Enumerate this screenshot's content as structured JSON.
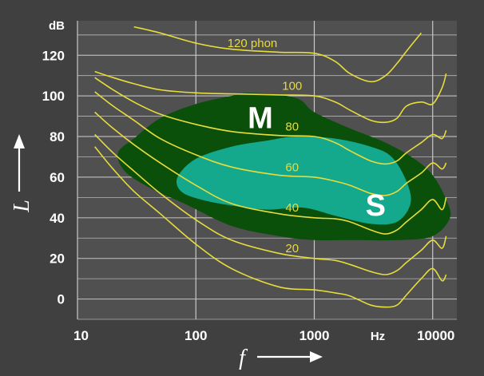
{
  "chart_data": {
    "type": "line",
    "title": "",
    "xlabel": "f",
    "ylabel": "L",
    "x_scale": "log",
    "xlim": [
      10,
      16000
    ],
    "ylim": [
      -10,
      137
    ],
    "grid": true,
    "x_ticks": [
      10,
      100,
      1000,
      10000
    ],
    "x_tick_labels": [
      "10",
      "100",
      "1000",
      "10000"
    ],
    "x_unit": "Hz",
    "y_ticks": [
      0,
      20,
      40,
      60,
      80,
      100,
      120
    ],
    "y_tick_labels": [
      "0",
      "20",
      "40",
      "60",
      "80",
      "100",
      "120"
    ],
    "y_unit": "dB",
    "colors": {
      "background": "#404040",
      "plot_background": "#505050",
      "grid": "#c8c8c8",
      "curves": "#e6dc3c",
      "music_region": "#0a4f0a",
      "speech_region": "#14a88c"
    },
    "series": [
      {
        "name": "120 phon",
        "label": "120 phon",
        "points": [
          [
            30,
            134
          ],
          [
            50,
            131
          ],
          [
            100,
            126
          ],
          [
            200,
            123
          ],
          [
            500,
            121.5
          ],
          [
            1000,
            121
          ],
          [
            1500,
            117
          ],
          [
            2000,
            111
          ],
          [
            3000,
            107
          ],
          [
            4000,
            110
          ],
          [
            5000,
            116
          ],
          [
            6000,
            122
          ],
          [
            8000,
            131
          ]
        ]
      },
      {
        "name": "100 phon",
        "label": "100",
        "points": [
          [
            14,
            112
          ],
          [
            20,
            109
          ],
          [
            30,
            106
          ],
          [
            50,
            103
          ],
          [
            100,
            101.5
          ],
          [
            200,
            101
          ],
          [
            500,
            100.5
          ],
          [
            1000,
            100
          ],
          [
            1500,
            97
          ],
          [
            2000,
            93
          ],
          [
            3000,
            88
          ],
          [
            4000,
            87
          ],
          [
            5000,
            89
          ],
          [
            6000,
            95
          ],
          [
            8000,
            97
          ],
          [
            10000,
            96
          ],
          [
            12000,
            104
          ],
          [
            13000,
            111
          ]
        ]
      },
      {
        "name": "80 phon",
        "label": "80",
        "points": [
          [
            14,
            109
          ],
          [
            20,
            103
          ],
          [
            30,
            97
          ],
          [
            50,
            91
          ],
          [
            100,
            86
          ],
          [
            200,
            82.5
          ],
          [
            500,
            80.5
          ],
          [
            1000,
            80
          ],
          [
            1500,
            77
          ],
          [
            2000,
            73
          ],
          [
            3000,
            68
          ],
          [
            4000,
            66.5
          ],
          [
            5000,
            68
          ],
          [
            6000,
            72
          ],
          [
            8000,
            77
          ],
          [
            10000,
            81
          ],
          [
            12000,
            79
          ],
          [
            13000,
            83
          ]
        ]
      },
      {
        "name": "60 phon",
        "label": "60",
        "points": [
          [
            14,
            102
          ],
          [
            20,
            95
          ],
          [
            30,
            88
          ],
          [
            50,
            79
          ],
          [
            100,
            71
          ],
          [
            200,
            65
          ],
          [
            500,
            61
          ],
          [
            1000,
            60
          ],
          [
            1500,
            58
          ],
          [
            2000,
            56
          ],
          [
            3000,
            52
          ],
          [
            4000,
            51
          ],
          [
            5000,
            53
          ],
          [
            6000,
            57
          ],
          [
            8000,
            62
          ],
          [
            10000,
            67
          ],
          [
            12000,
            64
          ],
          [
            13000,
            67
          ]
        ]
      },
      {
        "name": "40 phon",
        "label": "40",
        "points": [
          [
            14,
            92
          ],
          [
            20,
            84
          ],
          [
            30,
            76
          ],
          [
            50,
            67
          ],
          [
            100,
            56
          ],
          [
            200,
            47
          ],
          [
            500,
            42
          ],
          [
            1000,
            40
          ],
          [
            1500,
            39.5
          ],
          [
            2000,
            38
          ],
          [
            3000,
            34
          ],
          [
            4000,
            32
          ],
          [
            5000,
            34
          ],
          [
            6000,
            38
          ],
          [
            8000,
            44
          ],
          [
            10000,
            49
          ],
          [
            12000,
            44
          ],
          [
            13000,
            50
          ]
        ]
      },
      {
        "name": "20 phon",
        "label": "20",
        "points": [
          [
            14,
            81
          ],
          [
            20,
            72
          ],
          [
            30,
            63
          ],
          [
            50,
            52
          ],
          [
            100,
            39
          ],
          [
            200,
            29
          ],
          [
            500,
            22.5
          ],
          [
            1000,
            20
          ],
          [
            1500,
            19
          ],
          [
            2000,
            17
          ],
          [
            3000,
            13.5
          ],
          [
            4000,
            12
          ],
          [
            5000,
            14
          ],
          [
            6000,
            18
          ],
          [
            8000,
            24
          ],
          [
            10000,
            29
          ],
          [
            12000,
            25
          ],
          [
            13000,
            31
          ]
        ]
      },
      {
        "name": "hearing threshold",
        "label": "",
        "points": [
          [
            14,
            75
          ],
          [
            20,
            64
          ],
          [
            30,
            53
          ],
          [
            50,
            42
          ],
          [
            100,
            27
          ],
          [
            200,
            15
          ],
          [
            500,
            6
          ],
          [
            1000,
            4.5
          ],
          [
            1500,
            3
          ],
          [
            2000,
            1.5
          ],
          [
            3000,
            -3
          ],
          [
            4000,
            -4
          ],
          [
            5000,
            -3
          ],
          [
            6000,
            2
          ],
          [
            8000,
            10
          ],
          [
            10000,
            15
          ],
          [
            12000,
            9
          ],
          [
            13000,
            12
          ]
        ]
      }
    ],
    "regions": [
      {
        "name": "music",
        "label": "M",
        "polygon": [
          [
            22,
            72
          ],
          [
            30,
            79
          ],
          [
            50,
            89
          ],
          [
            100,
            96
          ],
          [
            200,
            100
          ],
          [
            300,
            101.5
          ],
          [
            700,
            99
          ],
          [
            1000,
            92
          ],
          [
            2000,
            84
          ],
          [
            4000,
            77
          ],
          [
            7000,
            69
          ],
          [
            10000,
            61
          ],
          [
            13000,
            49
          ],
          [
            14000,
            40
          ],
          [
            10000,
            31
          ],
          [
            5000,
            29
          ],
          [
            2000,
            29
          ],
          [
            1000,
            29
          ],
          [
            500,
            31
          ],
          [
            200,
            36
          ],
          [
            80,
            47
          ],
          [
            40,
            55
          ],
          [
            25,
            63
          ]
        ],
        "label_at": [
          350,
          88
        ]
      },
      {
        "name": "speech",
        "label": "S",
        "polygon": [
          [
            70,
            60
          ],
          [
            100,
            69
          ],
          [
            200,
            75
          ],
          [
            400,
            78
          ],
          [
            700,
            80
          ],
          [
            1500,
            79
          ],
          [
            3000,
            75
          ],
          [
            4500,
            70
          ],
          [
            6000,
            58
          ],
          [
            6500,
            47
          ],
          [
            5000,
            38
          ],
          [
            3000,
            37
          ],
          [
            1500,
            41
          ],
          [
            800,
            45
          ],
          [
            400,
            44
          ],
          [
            200,
            46
          ],
          [
            110,
            49
          ],
          [
            75,
            53
          ]
        ],
        "label_at": [
          3300,
          45
        ]
      }
    ]
  }
}
